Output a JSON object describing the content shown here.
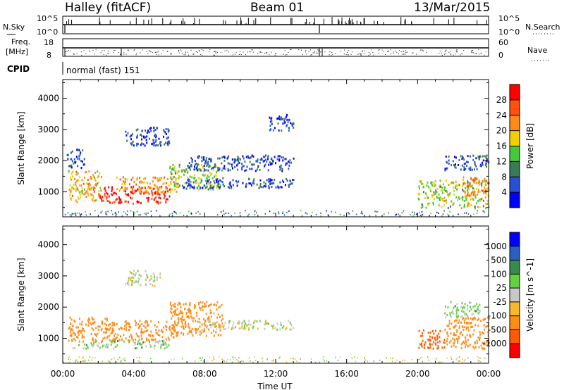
{
  "header": {
    "station": "Halley (fitACF)",
    "beam": "Beam 01",
    "date": "13/Mar/2015"
  },
  "nsky_panel": {
    "left_label": "N.Sky",
    "right_label": "N.Search",
    "left_ticks": [
      "10^5",
      "10^0"
    ],
    "right_ticks": [
      "10^5",
      "10^0"
    ]
  },
  "freq_panel": {
    "left_label_1": "Freq.",
    "left_label_2": "[MHz]",
    "left_ticks": [
      "18",
      "8"
    ],
    "right_label": "Nave",
    "right_ticks": [
      "60",
      "0"
    ]
  },
  "cpid_panel": {
    "label": "CPID",
    "mode_text": "normal (fast) 151"
  },
  "colors": {
    "power_scale": [
      "#0000ff",
      "#2a4fd0",
      "#3a7a5a",
      "#46c83a",
      "#f0d000",
      "#ff8a1a",
      "#ff5010",
      "#ff0000"
    ],
    "velocity_scale": [
      "#ff0000",
      "#ff5a00",
      "#ff8c1a",
      "#f5b82e",
      "#c8c8c8",
      "#64d040",
      "#3a8a50",
      "#2a5fc0",
      "#0000ff"
    ]
  },
  "chart_data": [
    {
      "type": "heatmap",
      "title": "Power",
      "ylabel": "Slant Range [km]",
      "xlabel": "",
      "x_ticks": [
        "00:00",
        "04:00",
        "08:00",
        "12:00",
        "16:00",
        "20:00",
        "00:00"
      ],
      "y_ticks": [
        1000,
        2000,
        3000,
        4000
      ],
      "ylim": [
        200,
        4600
      ],
      "xlim_hours": [
        0,
        24
      ],
      "colorbar": {
        "label": "Power [dB]",
        "ticks": [
          4,
          8,
          12,
          16,
          20,
          24,
          28
        ],
        "range": [
          0,
          32
        ]
      },
      "regions": [
        {
          "x": [
            0.3,
            2.2
          ],
          "y": [
            700,
            1700
          ],
          "value": 20
        },
        {
          "x": [
            2.0,
            6.0
          ],
          "y": [
            650,
            1200
          ],
          "value": 29
        },
        {
          "x": [
            3.0,
            6.5
          ],
          "y": [
            1000,
            1500
          ],
          "value": 22
        },
        {
          "x": [
            6.0,
            9.0
          ],
          "y": [
            1100,
            1900
          ],
          "value": 15
        },
        {
          "x": [
            6.5,
            13.0
          ],
          "y": [
            1150,
            1450
          ],
          "value": 6
        },
        {
          "x": [
            3.5,
            6.0
          ],
          "y": [
            2500,
            3100
          ],
          "value": 6
        },
        {
          "x": [
            7.0,
            13.0
          ],
          "y": [
            1700,
            2200
          ],
          "value": 6
        },
        {
          "x": [
            11.5,
            13.0
          ],
          "y": [
            3000,
            3500
          ],
          "value": 6
        },
        {
          "x": [
            0.2,
            1.2
          ],
          "y": [
            1800,
            2400
          ],
          "value": 6
        },
        {
          "x": [
            20.0,
            24.0
          ],
          "y": [
            500,
            1400
          ],
          "value": 16
        },
        {
          "x": [
            22.5,
            24.0
          ],
          "y": [
            900,
            1500
          ],
          "value": 24
        },
        {
          "x": [
            21.5,
            24.0
          ],
          "y": [
            1700,
            2200
          ],
          "value": 6
        }
      ]
    },
    {
      "type": "heatmap",
      "title": "Velocity",
      "ylabel": "Slant Range [km]",
      "xlabel": "Time UT",
      "x_ticks": [
        "00:00",
        "04:00",
        "08:00",
        "12:00",
        "16:00",
        "20:00",
        "00:00"
      ],
      "y_ticks": [
        1000,
        2000,
        3000,
        4000
      ],
      "ylim": [
        200,
        4600
      ],
      "xlim_hours": [
        0,
        24
      ],
      "colorbar": {
        "label": "Velocity [m s^-1]",
        "ticks": [
          1000,
          500,
          100,
          25,
          -25,
          -100,
          -500,
          -1000
        ]
      },
      "regions": [
        {
          "x": [
            0.3,
            2.5
          ],
          "y": [
            900,
            1700
          ],
          "value": -300
        },
        {
          "x": [
            2.5,
            6.5
          ],
          "y": [
            950,
            1600
          ],
          "value": -200
        },
        {
          "x": [
            0.5,
            6.0
          ],
          "y": [
            700,
            950
          ],
          "value": 50
        },
        {
          "x": [
            6.0,
            9.0
          ],
          "y": [
            1100,
            2200
          ],
          "value": -150
        },
        {
          "x": [
            8.0,
            13.0
          ],
          "y": [
            1300,
            1600
          ],
          "value": 0
        },
        {
          "x": [
            3.5,
            5.5
          ],
          "y": [
            2700,
            3200
          ],
          "value": 0
        },
        {
          "x": [
            20.0,
            21.5
          ],
          "y": [
            700,
            1300
          ],
          "value": -800
        },
        {
          "x": [
            21.5,
            24.0
          ],
          "y": [
            700,
            1700
          ],
          "value": -300
        },
        {
          "x": [
            21.5,
            23.5
          ],
          "y": [
            1700,
            2200
          ],
          "value": 50
        }
      ]
    }
  ]
}
